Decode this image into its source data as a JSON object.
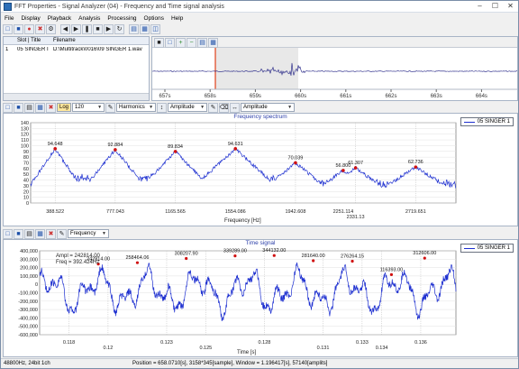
{
  "window": {
    "title": "FFT Properties - Signal Analyzer (04) - Frequency and Time signal analysis",
    "controls": [
      "minimize",
      "maximize",
      "close"
    ]
  },
  "menu": [
    "File",
    "Display",
    "Playback",
    "Analysis",
    "Processing",
    "Options",
    "Help"
  ],
  "playlist": {
    "columns": [
      "",
      "Slot | Title",
      "Filename"
    ],
    "rows": [
      {
        "num": "1",
        "title": "05 SINGER I",
        "file": "D:\\Multitrack\\0016\\09 SINGER 1.wav"
      }
    ]
  },
  "overview": {
    "time_ticks": [
      "657s",
      "658s",
      "659s",
      "660s",
      "661s",
      "662s",
      "663s",
      "664s"
    ]
  },
  "spectrum_toolbar": {
    "log_label": "Log",
    "fft_size": "120",
    "mode_select": "Harmonics",
    "y_select": "Amplitude",
    "y_select2": "Amplitude"
  },
  "time_toolbar": {
    "mode_select": "Frequency"
  },
  "chart_data": [
    {
      "type": "line",
      "title": "Frequency spectrum",
      "xlabel": "Frequency [Hz]",
      "ylabel": "",
      "series": [
        {
          "name": "05 SINGER 1"
        }
      ],
      "ylim": [
        0,
        140
      ],
      "yticks": [
        "140",
        "130",
        "120",
        "110",
        "100",
        "90",
        "80",
        "70",
        "60",
        "50",
        "40",
        "30",
        "20",
        "10",
        "0"
      ],
      "xticks": [
        "388.522",
        "777.043",
        "1165.565",
        "1554.086",
        "1942.608",
        "2331.13",
        "2719.651"
      ],
      "cursor_labels": [
        "2251.114",
        "2331.13"
      ],
      "peaks": [
        {
          "x": 388.522,
          "y": 94.648,
          "label": "94.648"
        },
        {
          "x": 777.043,
          "y": 92.884,
          "label": "92.884"
        },
        {
          "x": 1165.565,
          "y": 89.834,
          "label": "89.834"
        },
        {
          "x": 1554.086,
          "y": 94.631,
          "label": "94.631"
        },
        {
          "x": 1942.608,
          "y": 70.039,
          "label": "70.039"
        },
        {
          "x": 2251.114,
          "y": 56.8,
          "label": "56.800"
        },
        {
          "x": 2331.13,
          "y": 61.307,
          "label": "61.307"
        },
        {
          "x": 2719.651,
          "y": 62.736,
          "label": "62.736"
        }
      ]
    },
    {
      "type": "line",
      "title": "Time signal",
      "xlabel": "Time [s]",
      "ylabel": "",
      "series": [
        {
          "name": "05 SINGER 1"
        }
      ],
      "ylim": [
        -600000,
        400000
      ],
      "yticks": [
        "400,000",
        "300,000",
        "200,000",
        "100,000",
        "0",
        "-100,000",
        "-200,000",
        "-300,000",
        "-400,000",
        "-500,000",
        "-600,000"
      ],
      "xticks": [
        "0.118",
        "0.12",
        "0.123",
        "0.125",
        "0.128",
        "0.131",
        "0.133",
        "0.134",
        "0.136"
      ],
      "info": [
        "Ampl = 242814.00",
        "Freq = 392.424Hz"
      ],
      "peaks": [
        {
          "x": 0.1195,
          "y": 242814,
          "label": "242814.00"
        },
        {
          "x": 0.1215,
          "y": 258464.06,
          "label": "258464.06"
        },
        {
          "x": 0.124,
          "y": 308207.9,
          "label": "308207.90"
        },
        {
          "x": 0.1265,
          "y": 339289,
          "label": "339289.00"
        },
        {
          "x": 0.1285,
          "y": 344132,
          "label": "344132.00"
        },
        {
          "x": 0.1305,
          "y": 281640,
          "label": "281640.00"
        },
        {
          "x": 0.1325,
          "y": 276264.15,
          "label": "276264.15"
        },
        {
          "x": 0.1345,
          "y": 116393,
          "label": "116393.00"
        },
        {
          "x": 0.1362,
          "y": 312606,
          "label": "312606.00"
        }
      ]
    }
  ],
  "status": {
    "left": "48800Hz, 24bit 1ch",
    "right": "Position = 658.0710[s], 3158*345[sample], Window = 1.196417[s], 57140[amplits]"
  },
  "colors": {
    "signal": "#1d2fd0",
    "peak_marker": "#d01010",
    "cursor": "#e0401a",
    "title_blue": "#2b3ea8"
  }
}
